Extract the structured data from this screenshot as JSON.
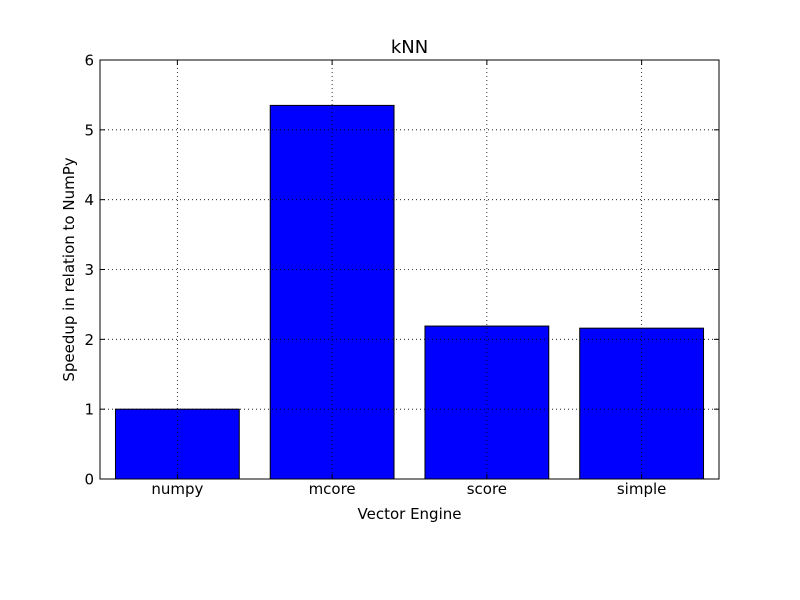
{
  "chart_data": {
    "type": "bar",
    "title": "kNN",
    "xlabel": "Vector Engine",
    "ylabel": "Speedup in relation to NumPy",
    "categories": [
      "numpy",
      "mcore",
      "score",
      "simple"
    ],
    "values": [
      1.0,
      5.35,
      2.19,
      2.16
    ],
    "ylim": [
      0,
      6
    ],
    "yticks": [
      "0",
      "1",
      "2",
      "3",
      "4",
      "5",
      "6"
    ],
    "grid": true,
    "legend": "none",
    "bar_color": "#0000ff",
    "edge_color": "#000000"
  }
}
